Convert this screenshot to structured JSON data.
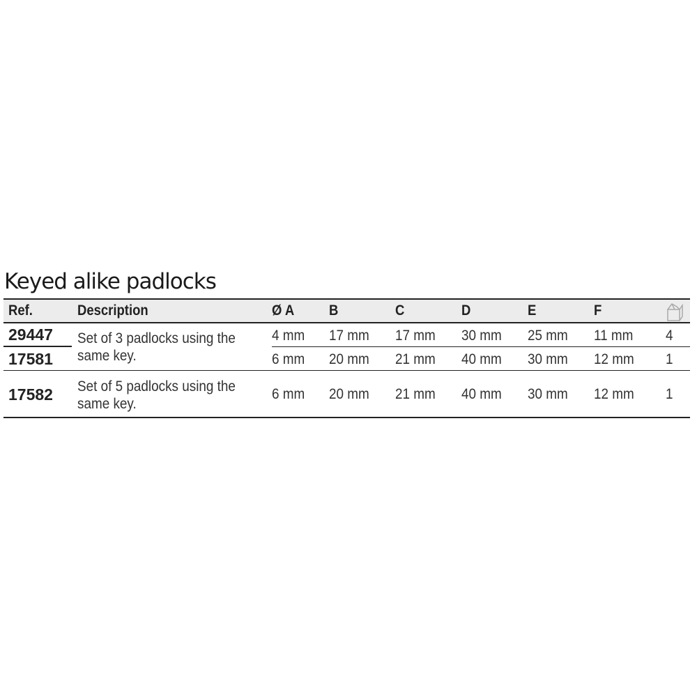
{
  "title": "Keyed alike padlocks",
  "columns": [
    "Ref.",
    "Description",
    "Ø A",
    "B",
    "C",
    "D",
    "E",
    "F"
  ],
  "quantity_column_icon": "box-icon",
  "rows": [
    {
      "ref": "29447",
      "values": [
        "4 mm",
        "17 mm",
        "17 mm",
        "30 mm",
        "25 mm",
        "11 mm",
        "4"
      ]
    },
    {
      "ref": "17581",
      "values": [
        "6 mm",
        "20 mm",
        "21 mm",
        "40 mm",
        "30 mm",
        "12 mm",
        "1"
      ]
    },
    {
      "ref": "17582",
      "values": [
        "6 mm",
        "20 mm",
        "21 mm",
        "40 mm",
        "30 mm",
        "12 mm",
        "1"
      ]
    }
  ],
  "descriptions": {
    "set3": "Set of 3 padlocks using the same key.",
    "set5": "Set of 5 padlocks using the same key."
  }
}
